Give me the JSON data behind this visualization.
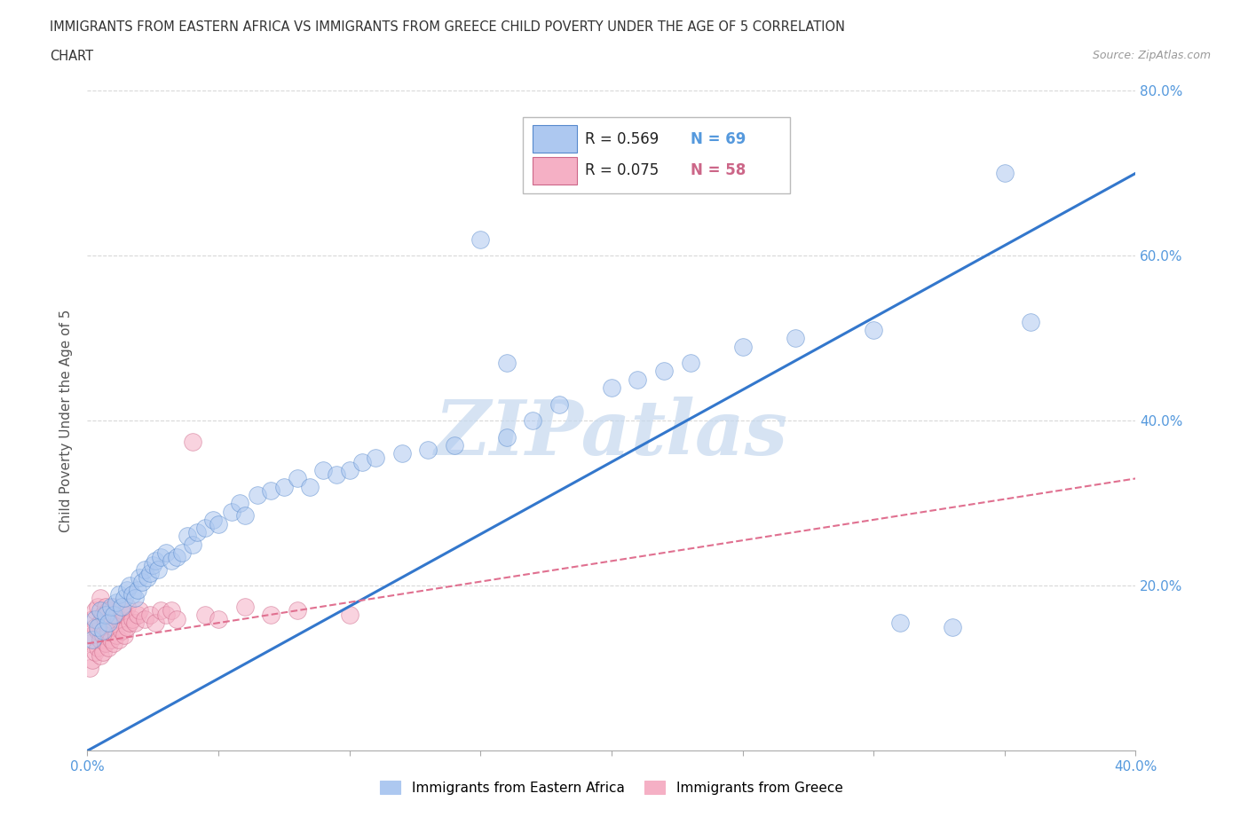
{
  "title_line1": "IMMIGRANTS FROM EASTERN AFRICA VS IMMIGRANTS FROM GREECE CHILD POVERTY UNDER THE AGE OF 5 CORRELATION",
  "title_line2": "CHART",
  "source_text": "Source: ZipAtlas.com",
  "ylabel": "Child Poverty Under the Age of 5",
  "xlim": [
    0,
    0.4
  ],
  "ylim": [
    0,
    0.8
  ],
  "blue_R": 0.569,
  "blue_N": 69,
  "pink_R": 0.075,
  "pink_N": 58,
  "blue_color": "#adc8f0",
  "pink_color": "#f5b0c5",
  "blue_edge_color": "#5588cc",
  "pink_edge_color": "#cc6688",
  "blue_line_color": "#3377cc",
  "pink_line_color": "#e07090",
  "blue_trend_x0": 0.0,
  "blue_trend_y0": 0.0,
  "blue_trend_x1": 0.4,
  "blue_trend_y1": 0.7,
  "pink_trend_x0": 0.0,
  "pink_trend_y0": 0.13,
  "pink_trend_x1": 0.4,
  "pink_trend_y1": 0.33,
  "blue_scatter_x": [
    0.002,
    0.003,
    0.004,
    0.005,
    0.006,
    0.007,
    0.008,
    0.009,
    0.01,
    0.011,
    0.012,
    0.013,
    0.014,
    0.015,
    0.016,
    0.017,
    0.018,
    0.019,
    0.02,
    0.021,
    0.022,
    0.023,
    0.024,
    0.025,
    0.026,
    0.027,
    0.028,
    0.03,
    0.032,
    0.034,
    0.036,
    0.038,
    0.04,
    0.042,
    0.045,
    0.048,
    0.05,
    0.055,
    0.058,
    0.06,
    0.065,
    0.07,
    0.075,
    0.08,
    0.085,
    0.09,
    0.095,
    0.1,
    0.105,
    0.11,
    0.12,
    0.13,
    0.14,
    0.15,
    0.16,
    0.17,
    0.18,
    0.2,
    0.21,
    0.22,
    0.23,
    0.25,
    0.27,
    0.3,
    0.31,
    0.33,
    0.16,
    0.35,
    0.36
  ],
  "blue_scatter_y": [
    0.135,
    0.16,
    0.15,
    0.17,
    0.145,
    0.165,
    0.155,
    0.175,
    0.165,
    0.18,
    0.19,
    0.175,
    0.185,
    0.195,
    0.2,
    0.19,
    0.185,
    0.195,
    0.21,
    0.205,
    0.22,
    0.21,
    0.215,
    0.225,
    0.23,
    0.22,
    0.235,
    0.24,
    0.23,
    0.235,
    0.24,
    0.26,
    0.25,
    0.265,
    0.27,
    0.28,
    0.275,
    0.29,
    0.3,
    0.285,
    0.31,
    0.315,
    0.32,
    0.33,
    0.32,
    0.34,
    0.335,
    0.34,
    0.35,
    0.355,
    0.36,
    0.365,
    0.37,
    0.62,
    0.38,
    0.4,
    0.42,
    0.44,
    0.45,
    0.46,
    0.47,
    0.49,
    0.5,
    0.51,
    0.155,
    0.15,
    0.47,
    0.7,
    0.52
  ],
  "pink_scatter_x": [
    0.001,
    0.001,
    0.002,
    0.002,
    0.002,
    0.003,
    0.003,
    0.003,
    0.004,
    0.004,
    0.004,
    0.005,
    0.005,
    0.005,
    0.005,
    0.006,
    0.006,
    0.006,
    0.007,
    0.007,
    0.007,
    0.008,
    0.008,
    0.008,
    0.009,
    0.009,
    0.01,
    0.01,
    0.01,
    0.011,
    0.011,
    0.012,
    0.012,
    0.013,
    0.013,
    0.014,
    0.014,
    0.015,
    0.015,
    0.016,
    0.017,
    0.018,
    0.019,
    0.02,
    0.022,
    0.024,
    0.026,
    0.028,
    0.03,
    0.032,
    0.034,
    0.04,
    0.045,
    0.05,
    0.06,
    0.07,
    0.08,
    0.1
  ],
  "pink_scatter_y": [
    0.1,
    0.13,
    0.11,
    0.14,
    0.16,
    0.12,
    0.15,
    0.17,
    0.125,
    0.145,
    0.175,
    0.115,
    0.135,
    0.155,
    0.185,
    0.12,
    0.14,
    0.165,
    0.13,
    0.155,
    0.175,
    0.125,
    0.145,
    0.17,
    0.135,
    0.16,
    0.13,
    0.15,
    0.175,
    0.14,
    0.165,
    0.135,
    0.16,
    0.145,
    0.17,
    0.14,
    0.165,
    0.15,
    0.175,
    0.155,
    0.16,
    0.155,
    0.165,
    0.17,
    0.16,
    0.165,
    0.155,
    0.17,
    0.165,
    0.17,
    0.16,
    0.375,
    0.165,
    0.16,
    0.175,
    0.165,
    0.17,
    0.165
  ],
  "watermark": "ZIPatlas",
  "watermark_color": "#c5d8ee",
  "legend_label_blue": "Immigrants from Eastern Africa",
  "legend_label_pink": "Immigrants from Greece",
  "background_color": "#ffffff",
  "grid_color": "#d8d8d8",
  "axis_label_color": "#5599dd",
  "title_color": "#333333",
  "source_color": "#999999"
}
